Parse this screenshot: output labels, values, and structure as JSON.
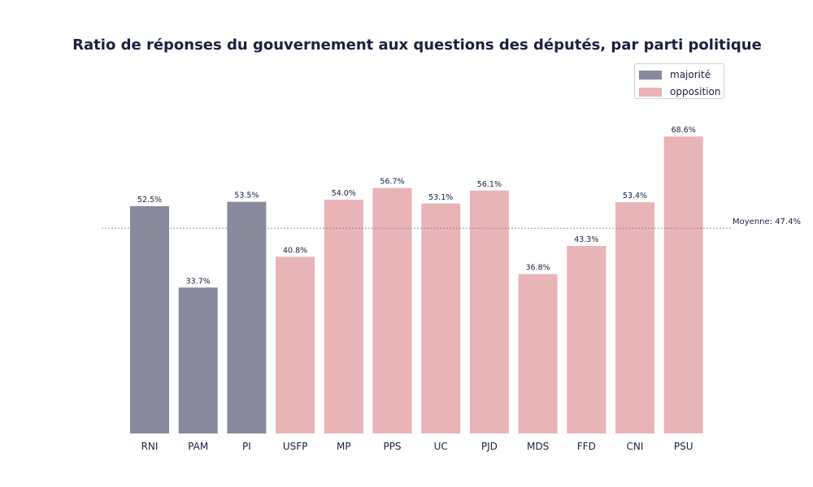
{
  "chart_data": {
    "type": "bar",
    "title": "Ratio de réponses du gouvernement aux questions des députés, par parti politique",
    "xlabel": "",
    "ylabel": "",
    "ylim": [
      0,
      72
    ],
    "grid": false,
    "legend_position": "top-right",
    "categories": [
      "RNI",
      "PAM",
      "PI",
      "USFP",
      "MP",
      "PPS",
      "UC",
      "PJD",
      "MDS",
      "FFD",
      "CNI",
      "PSU"
    ],
    "values": [
      52.5,
      33.7,
      53.5,
      40.8,
      54.0,
      56.7,
      53.1,
      56.1,
      36.8,
      43.3,
      53.4,
      68.6
    ],
    "value_labels": [
      "52.5%",
      "33.7%",
      "53.5%",
      "40.8%",
      "54.0%",
      "56.7%",
      "53.1%",
      "56.1%",
      "36.8%",
      "43.3%",
      "53.4%",
      "68.6%"
    ],
    "groups": [
      "majorité",
      "majorité",
      "majorité",
      "opposition",
      "opposition",
      "opposition",
      "opposition",
      "opposition",
      "opposition",
      "opposition",
      "opposition",
      "opposition"
    ],
    "legend": [
      {
        "name": "majorité",
        "color": "#888a9c"
      },
      {
        "name": "opposition",
        "color": "#e8b4b8"
      }
    ],
    "mean": {
      "value": 47.4,
      "label": "Moyenne: 47.4%",
      "color": "#888888"
    }
  }
}
